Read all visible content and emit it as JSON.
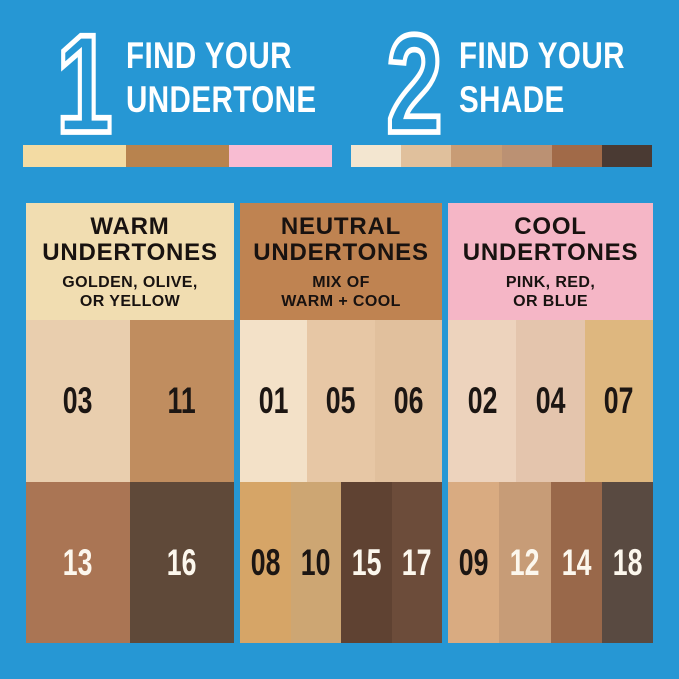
{
  "background_color": "#2697d4",
  "steps": [
    {
      "number": "1",
      "line1": "FIND YOUR",
      "line2": "UNDERTONE",
      "strip": [
        "#f3dba3",
        "#b8834e",
        "#f8bcd2"
      ]
    },
    {
      "number": "2",
      "line1": "FIND YOUR",
      "line2": "SHADE",
      "strip": [
        "#f3e6d0",
        "#e0c09c",
        "#c89c75",
        "#bb9173",
        "#a16a48",
        "#4a3a33"
      ]
    }
  ],
  "columns": [
    {
      "name": "warm",
      "header_bg": "#f1ddb1",
      "title_line1": "WARM",
      "title_line2": "UNDERTONES",
      "subtitle_line1": "GOLDEN, OLIVE,",
      "subtitle_line2": "OR YELLOW",
      "light_row": [
        {
          "label": "03",
          "color": "#e9ceae",
          "label_color": "#1c1613"
        },
        {
          "label": "11",
          "color": "#c08d5f",
          "label_color": "#1c1613"
        }
      ],
      "dark_row": [
        {
          "label": "13",
          "color": "#aa7554",
          "label_color": "#fcf7ed"
        },
        {
          "label": "16",
          "color": "#5f4939",
          "label_color": "#fcf7ed"
        }
      ]
    },
    {
      "name": "neutral",
      "header_bg": "#bf8351",
      "title_line1": "NEUTRAL",
      "title_line2": "UNDERTONES",
      "subtitle_line1": "MIX OF",
      "subtitle_line2": "WARM + COOL",
      "light_row": [
        {
          "label": "01",
          "color": "#f3e1c8",
          "label_color": "#1c1613"
        },
        {
          "label": "05",
          "color": "#e7c7a5",
          "label_color": "#1c1613"
        },
        {
          "label": "06",
          "color": "#e1c09d",
          "label_color": "#1c1613"
        }
      ],
      "dark_row": [
        {
          "label": "08",
          "color": "#d6a567",
          "label_color": "#1c1613"
        },
        {
          "label": "10",
          "color": "#cda673",
          "label_color": "#1c1613"
        },
        {
          "label": "15",
          "color": "#5f4232",
          "label_color": "#fcf7ed"
        },
        {
          "label": "17",
          "color": "#6c4c3a",
          "label_color": "#fcf7ed"
        }
      ]
    },
    {
      "name": "cool",
      "header_bg": "#f5b6c6",
      "title_line1": "COOL",
      "title_line2": "UNDERTONES",
      "subtitle_line1": "PINK, RED,",
      "subtitle_line2": "OR BLUE",
      "light_row": [
        {
          "label": "02",
          "color": "#edd3bd",
          "label_color": "#1c1613"
        },
        {
          "label": "04",
          "color": "#e4c5ad",
          "label_color": "#1c1613"
        },
        {
          "label": "07",
          "color": "#deb77f",
          "label_color": "#1c1613"
        }
      ],
      "dark_row": [
        {
          "label": "09",
          "color": "#d9ab81",
          "label_color": "#1c1613"
        },
        {
          "label": "12",
          "color": "#c79c77",
          "label_color": "#fcf7ed"
        },
        {
          "label": "14",
          "color": "#99684a",
          "label_color": "#fcf7ed"
        },
        {
          "label": "18",
          "color": "#594a41",
          "label_color": "#fcf7ed"
        }
      ]
    }
  ]
}
